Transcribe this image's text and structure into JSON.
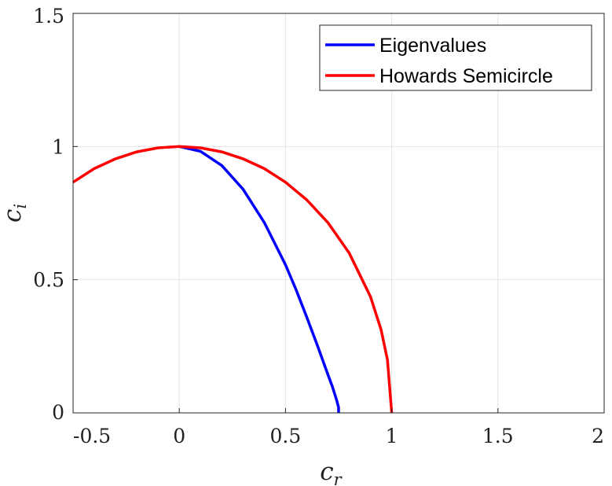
{
  "chart_data": {
    "type": "line",
    "xlabel": {
      "base": "c",
      "sub": "r"
    },
    "ylabel": {
      "base": "c",
      "sub": "i"
    },
    "xlim": [
      -0.5,
      2
    ],
    "ylim": [
      0,
      1.5
    ],
    "xticks": [
      -0.5,
      0,
      0.5,
      1,
      1.5,
      2
    ],
    "yticks": [
      0,
      0.5,
      1,
      1.5
    ],
    "xtick_labels": [
      "-0.5",
      "0",
      "0.5",
      "1",
      "1.5",
      "2"
    ],
    "ytick_labels": [
      "0",
      "0.5",
      "1",
      "1.5"
    ],
    "grid": true,
    "legend_position": "top-right",
    "series": [
      {
        "name": "Eigenvalues",
        "color": "#0000ff",
        "x": [
          0,
          0.1,
          0.2,
          0.3,
          0.4,
          0.5,
          0.55,
          0.6,
          0.65,
          0.7,
          0.72,
          0.74,
          0.75,
          0.75
        ],
        "y": [
          1,
          0.982,
          0.929,
          0.84,
          0.715,
          0.556,
          0.462,
          0.36,
          0.253,
          0.143,
          0.1,
          0.05,
          0.02,
          0
        ]
      },
      {
        "name": "Howards Semicircle",
        "color": "#ff0000",
        "x": [
          -0.5,
          -0.4,
          -0.3,
          -0.2,
          -0.1,
          0,
          0.1,
          0.2,
          0.3,
          0.4,
          0.5,
          0.6,
          0.7,
          0.8,
          0.9,
          0.95,
          0.98,
          1
        ],
        "y": [
          0.866,
          0.917,
          0.954,
          0.98,
          0.995,
          1,
          0.995,
          0.98,
          0.954,
          0.917,
          0.866,
          0.8,
          0.714,
          0.6,
          0.436,
          0.312,
          0.199,
          0
        ]
      }
    ]
  }
}
